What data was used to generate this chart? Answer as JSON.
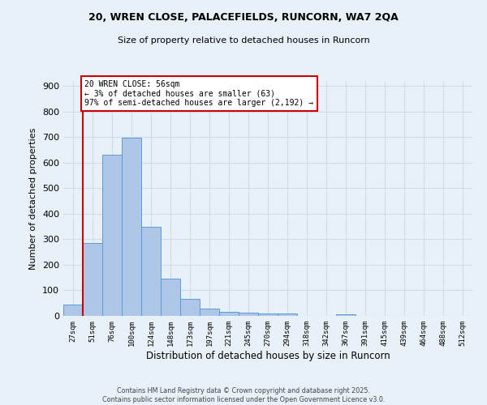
{
  "title_line1": "20, WREN CLOSE, PALACEFIELDS, RUNCORN, WA7 2QA",
  "title_line2": "Size of property relative to detached houses in Runcorn",
  "xlabel": "Distribution of detached houses by size in Runcorn",
  "ylabel": "Number of detached properties",
  "categories": [
    "27sqm",
    "51sqm",
    "76sqm",
    "100sqm",
    "124sqm",
    "148sqm",
    "173sqm",
    "197sqm",
    "221sqm",
    "245sqm",
    "270sqm",
    "294sqm",
    "318sqm",
    "342sqm",
    "367sqm",
    "391sqm",
    "415sqm",
    "439sqm",
    "464sqm",
    "488sqm",
    "512sqm"
  ],
  "values": [
    43,
    284,
    632,
    697,
    350,
    147,
    67,
    29,
    17,
    12,
    11,
    8,
    0,
    0,
    5,
    0,
    0,
    0,
    0,
    0,
    0
  ],
  "bar_color": "#aec6e8",
  "bar_edge_color": "#5b9bd5",
  "annotation_text_line1": "20 WREN CLOSE: 56sqm",
  "annotation_text_line2": "← 3% of detached houses are smaller (63)",
  "annotation_text_line3": "97% of semi-detached houses are larger (2,192) →",
  "annotation_box_color": "#ffffff",
  "annotation_box_edge_color": "#cc0000",
  "red_line_color": "#cc0000",
  "grid_color": "#d0dce8",
  "background_color": "#e8f0f8",
  "footer_text": "Contains HM Land Registry data © Crown copyright and database right 2025.\nContains public sector information licensed under the Open Government Licence v3.0.",
  "ylim": [
    0,
    920
  ],
  "yticks": [
    0,
    100,
    200,
    300,
    400,
    500,
    600,
    700,
    800,
    900
  ]
}
